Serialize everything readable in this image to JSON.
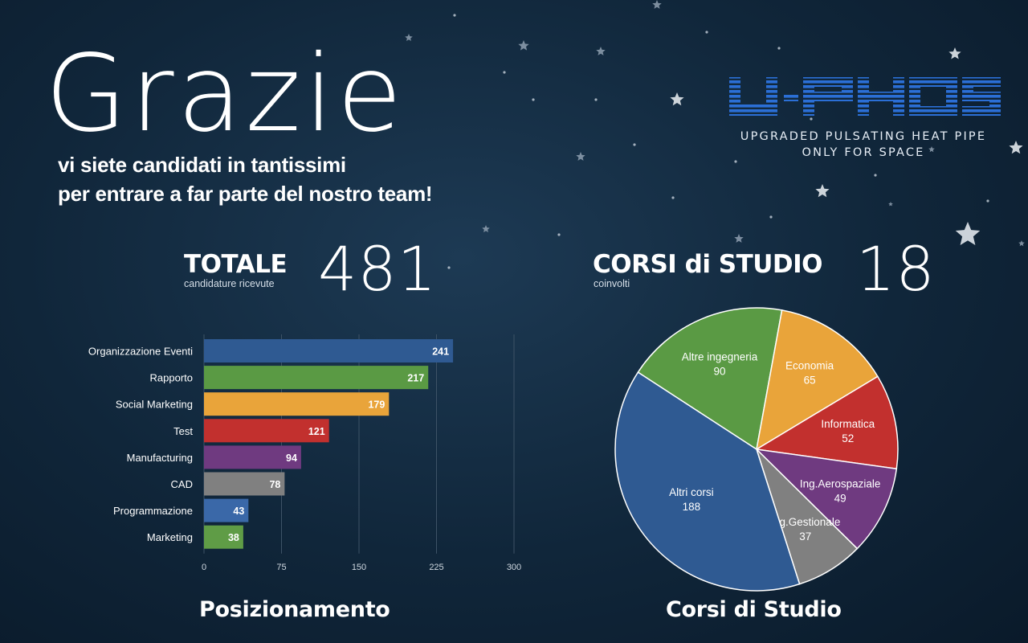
{
  "header": {
    "title": "Grazie",
    "subtitle_line1": "vi siete candidati in tantissimi",
    "subtitle_line2": "per entrare a far parte del nostro team!"
  },
  "logo": {
    "wordmark": "U-PHOS",
    "tagline_line1": "UPGRADED PULSATING HEAT PIPE",
    "tagline_line2": "ONLY FOR SPACE",
    "color": "#2b6fd6"
  },
  "stats": {
    "total": {
      "label": "TOTALE",
      "sublabel": "candidature ricevute",
      "value": "481"
    },
    "courses": {
      "label": "CORSI di STUDIO",
      "sublabel": "coinvolti",
      "value": "18"
    }
  },
  "chart_data": [
    {
      "type": "bar",
      "orientation": "horizontal",
      "title": "Posizionamento",
      "categories": [
        "Organizzazione Eventi",
        "Rapporto",
        "Social Marketing",
        "Test",
        "Manufacturing",
        "CAD",
        "Programmazione",
        "Marketing"
      ],
      "values": [
        241,
        217,
        179,
        121,
        94,
        78,
        43,
        38
      ],
      "colors": [
        "#2f5a92",
        "#5a9a44",
        "#e9a43a",
        "#c2302e",
        "#6f3a80",
        "#808080",
        "#3a68a8",
        "#5f9c46"
      ],
      "xlim": [
        0,
        300
      ],
      "xticks": [
        0,
        75,
        150,
        225,
        300
      ],
      "grid": true
    },
    {
      "type": "pie",
      "title": "Corsi di Studio",
      "slices": [
        {
          "label": "Altre ingegneria",
          "value": 90,
          "color": "#5a9a44"
        },
        {
          "label": "Economia",
          "value": 65,
          "color": "#e9a43a"
        },
        {
          "label": "Informatica",
          "value": 52,
          "color": "#c2302e"
        },
        {
          "label": "Ing.Aerospaziale",
          "value": 49,
          "color": "#6f3a80"
        },
        {
          "label": "Ing.Gestionale",
          "value": 37,
          "color": "#808080"
        },
        {
          "label": "Altri corsi",
          "value": 188,
          "color": "#2f5a92"
        }
      ]
    }
  ]
}
